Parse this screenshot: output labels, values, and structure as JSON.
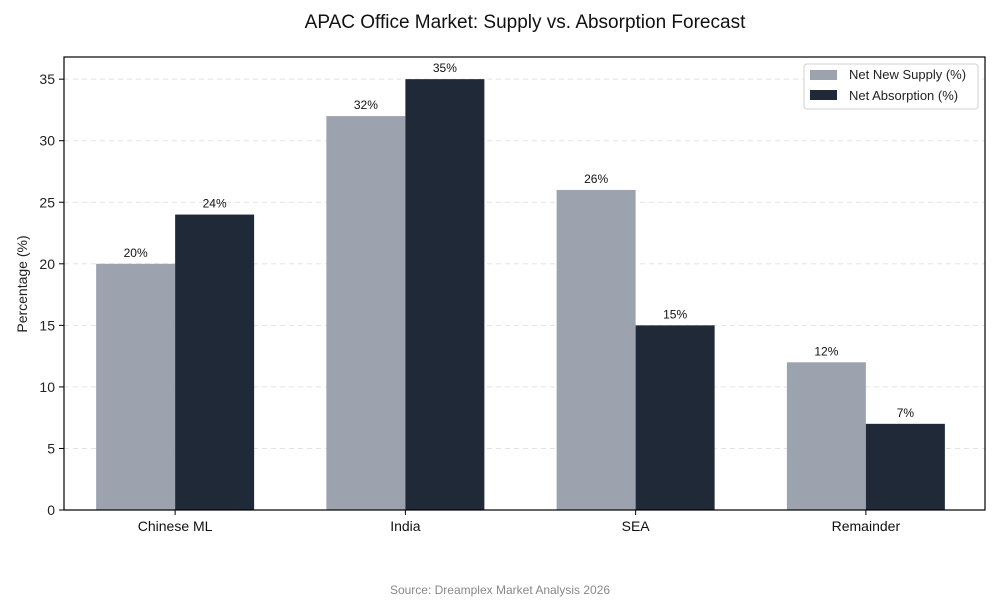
{
  "chart_data": {
    "type": "bar",
    "title": "APAC Office Market: Supply vs. Absorption Forecast",
    "xlabel": "",
    "ylabel": "Percentage (%)",
    "ylim": [
      0,
      36.8
    ],
    "yticks": [
      0,
      5,
      10,
      15,
      20,
      25,
      30,
      35
    ],
    "grid": true,
    "legend_position": "top-right",
    "categories": [
      "Chinese ML",
      "India",
      "SEA",
      "Remainder"
    ],
    "series": [
      {
        "name": "Net New Supply (%)",
        "color": "#9ca3af",
        "values": [
          20,
          32,
          26,
          12
        ],
        "labels": [
          "20%",
          "32%",
          "26%",
          "12%"
        ]
      },
      {
        "name": "Net Absorption (%)",
        "color": "#1f2937",
        "values": [
          24,
          35,
          15,
          7
        ],
        "labels": [
          "24%",
          "35%",
          "15%",
          "7%"
        ]
      }
    ],
    "source": "Source: Dreamplex Market Analysis 2026"
  }
}
